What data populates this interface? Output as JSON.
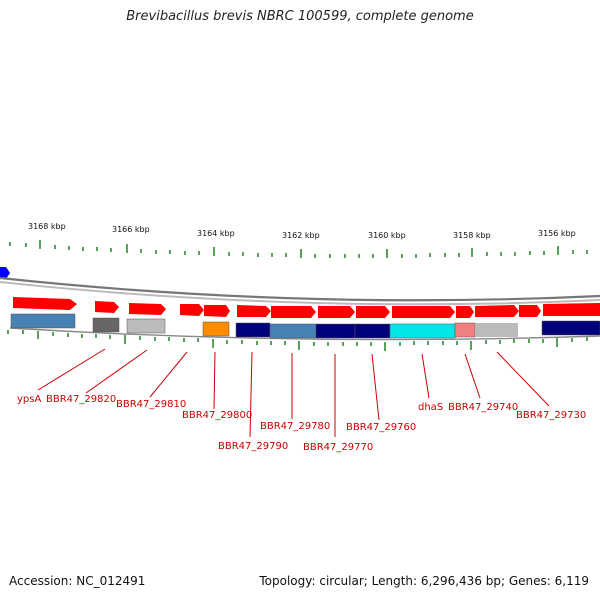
{
  "title": "Brevibacillus brevis NBRC 100599, complete genome",
  "footer": {
    "accession": "Accession: NC_012491",
    "topology": "Topology: circular; Length: 6,296,436 bp; Genes: 6,119"
  },
  "ruler": {
    "labels": [
      "3168 kbp",
      "3166 kbp",
      "3164 kbp",
      "3162 kbp",
      "3160 kbp",
      "3158 kbp",
      "3156 kbp"
    ]
  },
  "colors": {
    "forward_arrow": "#ff0000",
    "tick": "#2e8b2e",
    "backbone": "#888888",
    "label": "#cc0000",
    "marker": "#0000ff"
  },
  "genes": [
    {
      "name": "ypsA",
      "color": "#4682b4"
    },
    {
      "name": "BBR47_29820",
      "color": "#666666"
    },
    {
      "name": "BBR47_29810",
      "color": "#bbbbbb"
    },
    {
      "name": "BBR47_29800",
      "color": "#ff8c00"
    },
    {
      "name": "BBR47_29790",
      "color": "#00007a"
    },
    {
      "name": "BBR47_29780",
      "color": "#4682b4"
    },
    {
      "name": "BBR47_29770",
      "color": "#00007a"
    },
    {
      "name": "BBR47_29760",
      "color": "#00007a"
    },
    {
      "name": "dhaS",
      "color": "#00e5e5"
    },
    {
      "name": "BBR47_29740",
      "color": "#f08080"
    },
    {
      "name": "BBR47_29730",
      "color": "#00007a"
    }
  ]
}
